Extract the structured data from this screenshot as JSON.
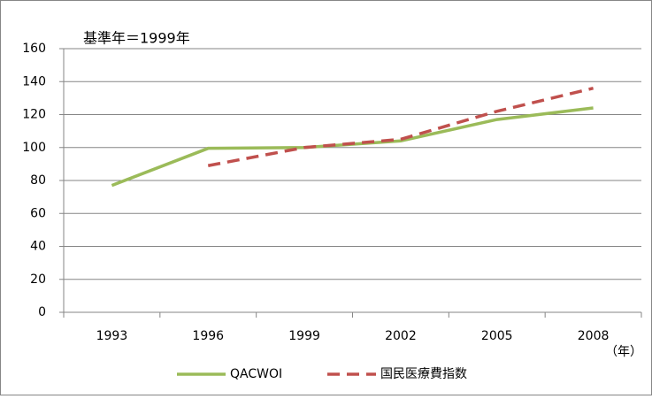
{
  "chart_data": {
    "type": "line",
    "annotation": "基準年＝1999年",
    "x_unit": "（年）",
    "categories": [
      "1993",
      "1996",
      "1999",
      "2002",
      "2005",
      "2008"
    ],
    "series": [
      {
        "name": "QACWOI",
        "color": "#9bbb59",
        "dashed": false,
        "values": [
          77,
          99.5,
          100,
          104,
          117,
          124
        ]
      },
      {
        "name": "国民医療費指数",
        "color": "#c0504d",
        "dashed": true,
        "values": [
          null,
          89,
          100,
          105,
          122,
          136
        ]
      }
    ],
    "ylim": [
      0,
      160
    ],
    "yticks": [
      0,
      20,
      40,
      60,
      80,
      100,
      120,
      140,
      160
    ],
    "grid": true
  }
}
